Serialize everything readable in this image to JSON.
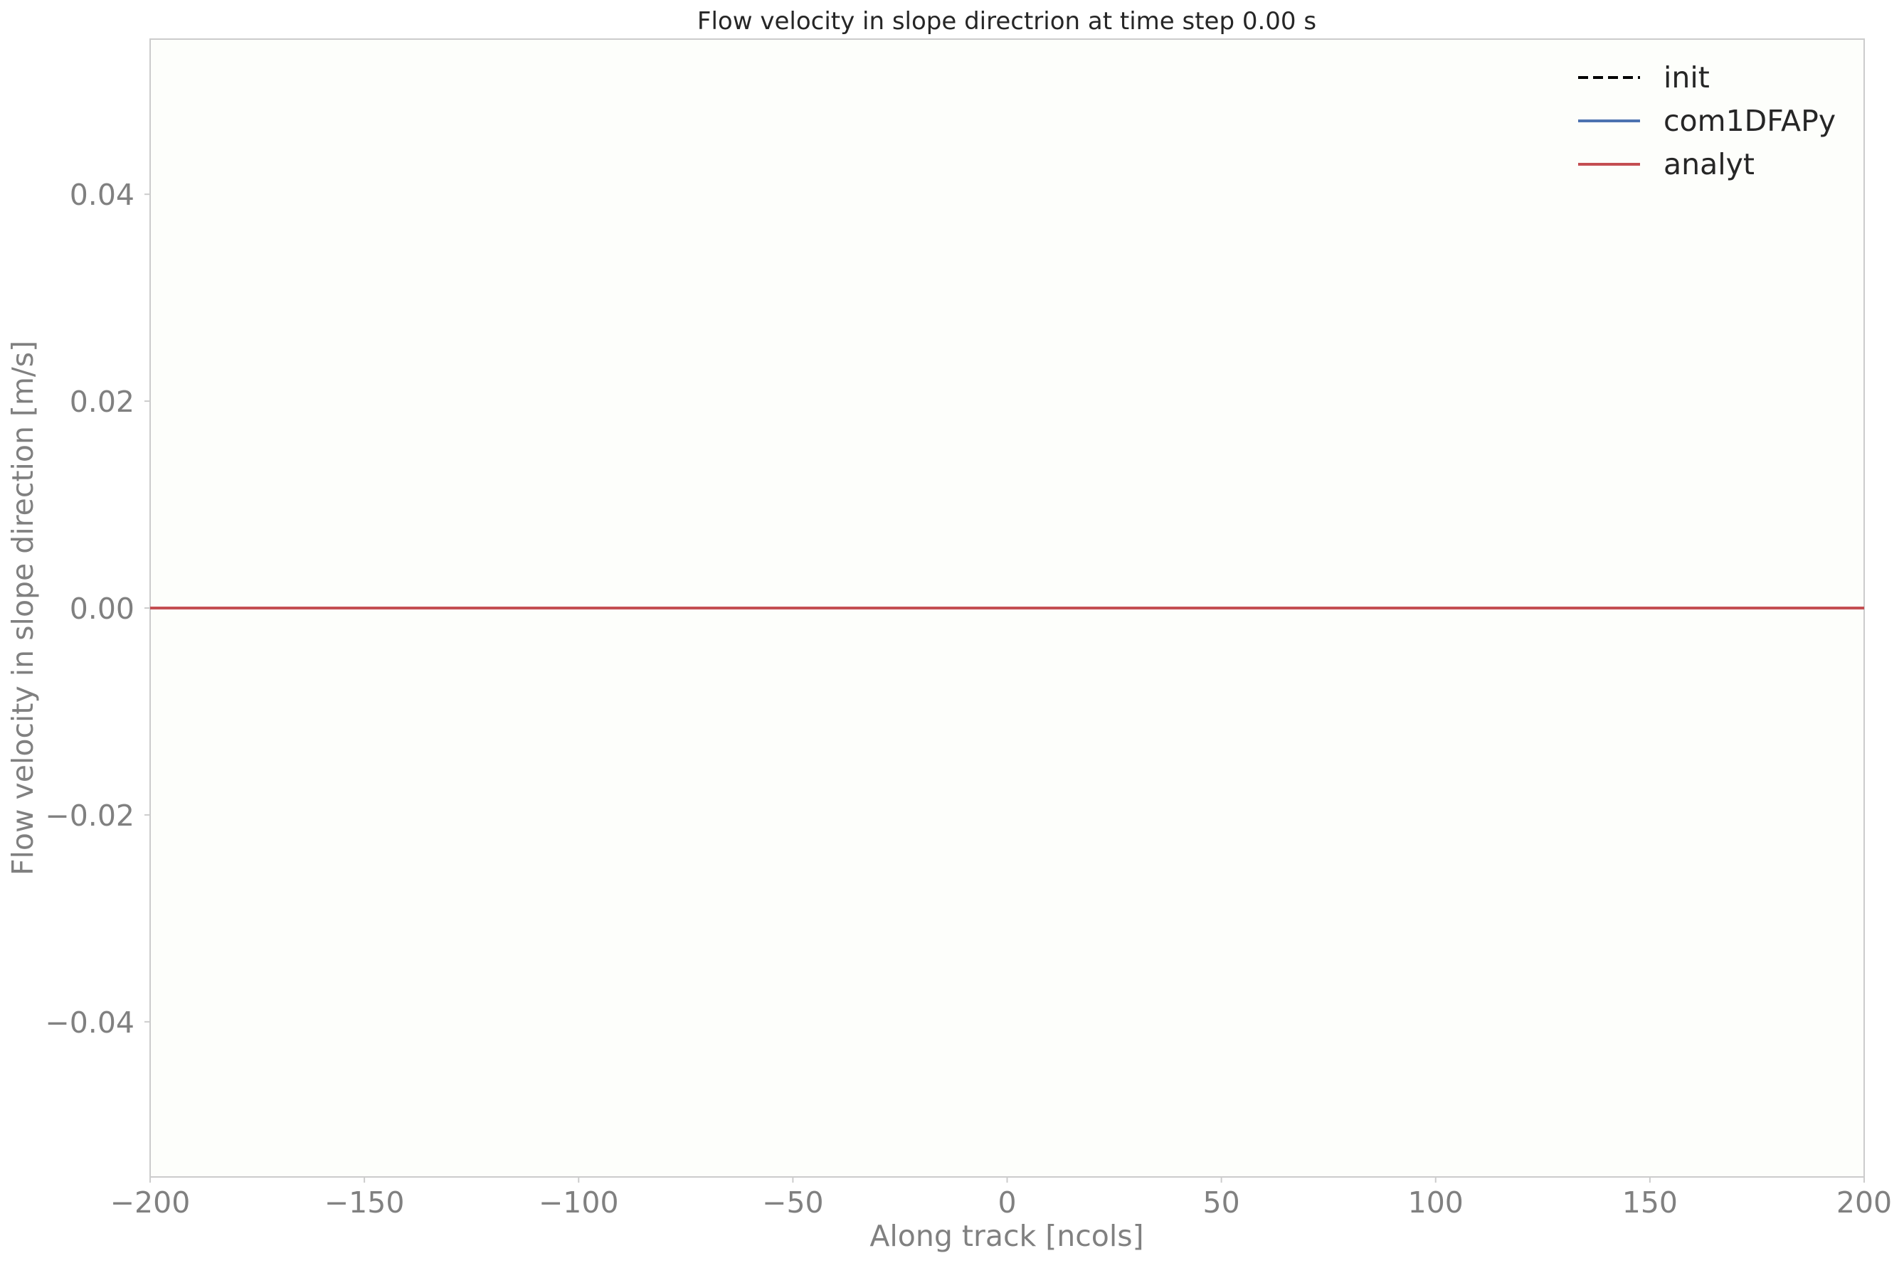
{
  "chart_data": {
    "type": "line",
    "title": "Flow velocity in slope directrion at time step 0.00 s",
    "xlabel": "Along track [ncols]",
    "ylabel": "Flow velocity in slope direction [m/s]",
    "xlim": [
      -200,
      200
    ],
    "ylim": [
      -0.055,
      0.055
    ],
    "x_ticks": [
      -200,
      -150,
      -100,
      -50,
      0,
      50,
      100,
      150,
      200
    ],
    "x_tick_labels": [
      "−200",
      "−150",
      "−100",
      "−50",
      "0",
      "50",
      "100",
      "150",
      "200"
    ],
    "y_ticks": [
      -0.04,
      -0.02,
      0.0,
      0.02,
      0.04
    ],
    "y_tick_labels": [
      "−0.04",
      "−0.02",
      "0.00",
      "0.02",
      "0.04"
    ],
    "grid": false,
    "legend_position": "top-right",
    "background": "#fdfefb",
    "series": [
      {
        "name": "init",
        "color": "#000000",
        "style": "dashed",
        "x": [
          -200,
          200
        ],
        "y": [
          0,
          0
        ]
      },
      {
        "name": "com1DFAPy",
        "color": "#4c72b0",
        "style": "solid",
        "x": [
          -200,
          200
        ],
        "y": [
          0,
          0
        ]
      },
      {
        "name": "analyt",
        "color": "#c44e52",
        "style": "solid",
        "x": [
          -200,
          200
        ],
        "y": [
          0,
          0
        ]
      }
    ]
  }
}
